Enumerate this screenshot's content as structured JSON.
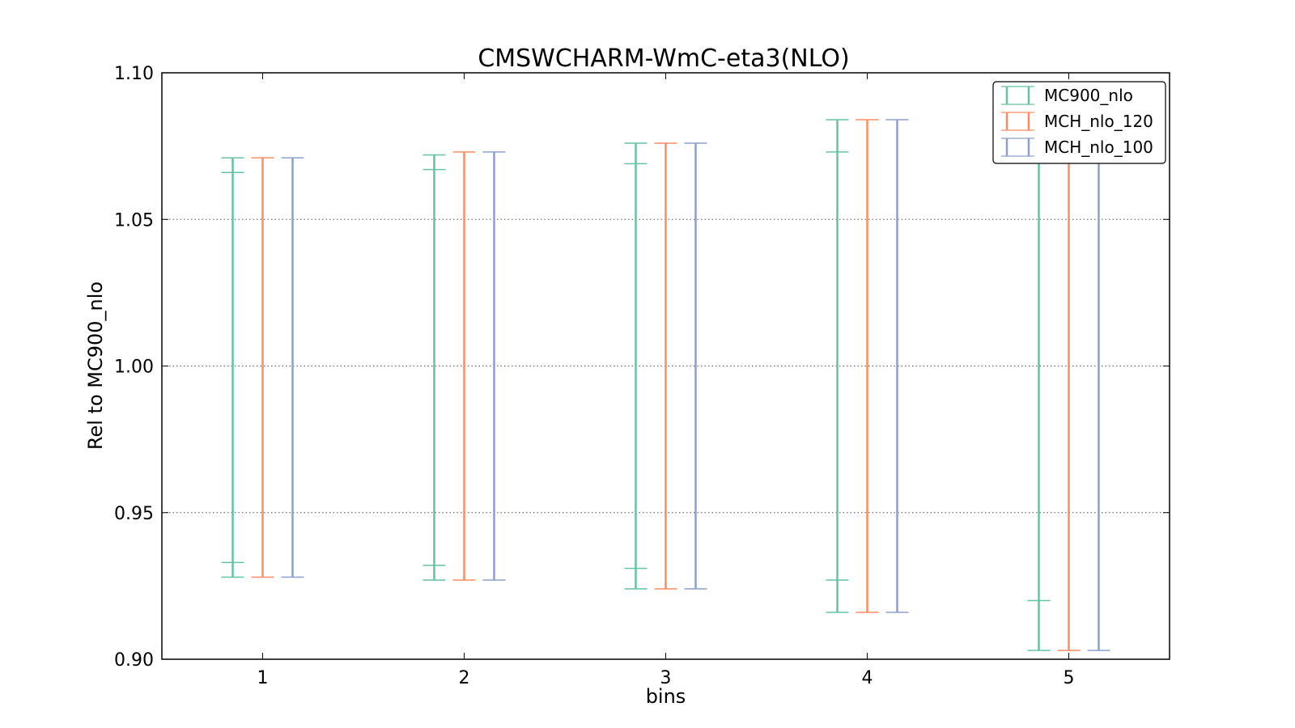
{
  "chart_data": {
    "type": "errorbar",
    "title": "CMSWCHARM-WmC-eta3(NLO)",
    "xlabel": "bins",
    "ylabel": "Rel to MC900_nlo",
    "xlim": [
      0.5,
      5.5
    ],
    "ylim": [
      0.9,
      1.1
    ],
    "xticks": [
      "1",
      "2",
      "3",
      "4",
      "5"
    ],
    "yticks": [
      "0.90",
      "0.95",
      "1.00",
      "1.05",
      "1.10"
    ],
    "grid": "horizontal dotted",
    "legend_position": "top-right",
    "x": [
      1,
      2,
      3,
      4,
      5
    ],
    "series": [
      {
        "name": "MC900_nlo",
        "color": "#66c2a5",
        "outer_low": [
          0.928,
          0.927,
          0.924,
          0.916,
          0.903
        ],
        "outer_high": [
          1.071,
          1.072,
          1.076,
          1.084,
          1.088
        ],
        "inner_low": [
          0.933,
          0.932,
          0.931,
          0.927,
          0.92
        ],
        "inner_high": [
          1.066,
          1.067,
          1.069,
          1.073,
          1.08
        ]
      },
      {
        "name": "MCH_nlo_120",
        "color": "#fc8d62",
        "outer_low": [
          0.928,
          0.927,
          0.924,
          0.916,
          0.903
        ],
        "outer_high": [
          1.071,
          1.073,
          1.076,
          1.084,
          1.089
        ]
      },
      {
        "name": "MCH_nlo_100",
        "color": "#8da0cb",
        "outer_low": [
          0.928,
          0.927,
          0.924,
          0.916,
          0.903
        ],
        "outer_high": [
          1.071,
          1.073,
          1.076,
          1.084,
          1.089
        ]
      }
    ]
  }
}
